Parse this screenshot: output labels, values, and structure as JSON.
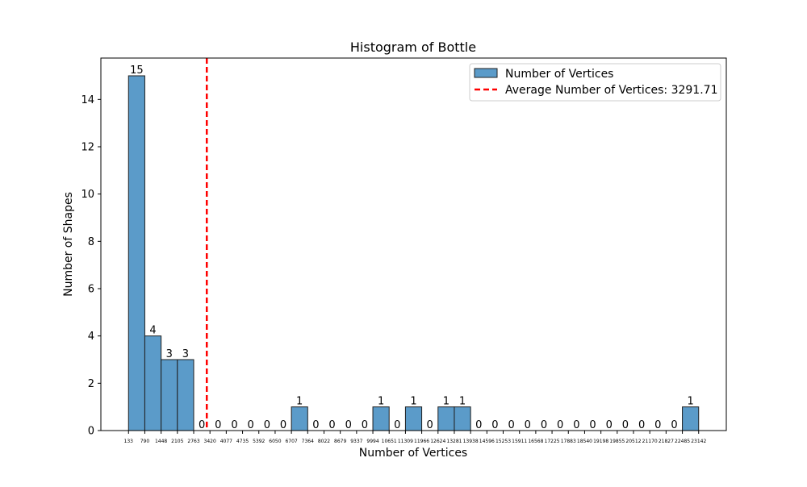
{
  "chart_data": {
    "type": "bar",
    "title": "Histogram of Bottle",
    "xlabel": "Number of Vertices",
    "ylabel": "Number of Shapes",
    "ylim": [
      0,
      15.75
    ],
    "yticks": [
      0,
      2,
      4,
      6,
      8,
      10,
      12,
      14
    ],
    "bin_edges": [
      133,
      790,
      1448,
      2105,
      2763,
      3420,
      4077,
      4735,
      5392,
      6050,
      6707,
      7364,
      8022,
      8679,
      9337,
      9994,
      10651,
      11309,
      11966,
      12624,
      13281,
      13938,
      14596,
      15253,
      15911,
      16568,
      17225,
      17883,
      18540,
      19198,
      19855,
      20512,
      21170,
      21827,
      22485,
      23142
    ],
    "xtick_labels": [
      "133",
      "790",
      "1448",
      "2105",
      "2763",
      "3420",
      "4077",
      "4735",
      "5392",
      "6050",
      "6707",
      "7364",
      "8022",
      "8679",
      "9337",
      "9994",
      "10651",
      "11309",
      "11966",
      "12624",
      "13281",
      "13938",
      "14596",
      "15253",
      "15911",
      "16568",
      "17225",
      "17883",
      "18540",
      "19198",
      "19855",
      "20512",
      "21170",
      "21827",
      "22485",
      "23142"
    ],
    "series": [
      {
        "name": "Number of Vertices",
        "color": "#5b9bc9",
        "values": [
          15,
          4,
          3,
          3,
          0,
          0,
          0,
          0,
          0,
          0,
          1,
          0,
          0,
          0,
          0,
          1,
          0,
          1,
          0,
          1,
          1,
          0,
          0,
          0,
          0,
          0,
          0,
          0,
          0,
          0,
          0,
          0,
          0,
          0,
          1
        ]
      }
    ],
    "average": {
      "label": "Average Number of Vertices: 3291.71",
      "value": 3291.71,
      "color": "#ff0000"
    },
    "legend_position": "top-right",
    "grid": false
  }
}
